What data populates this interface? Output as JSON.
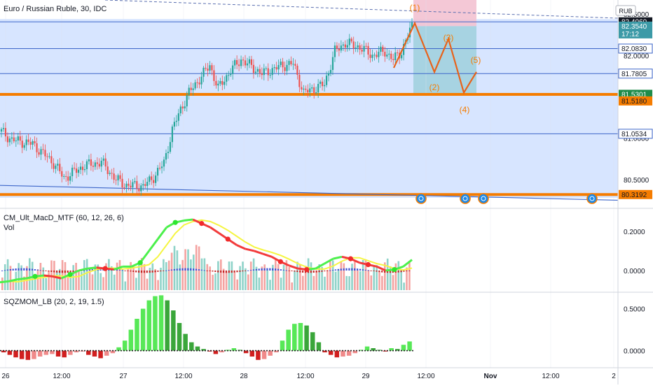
{
  "header": {
    "symbol_title": "Euro / Russian Ruble, 30, IDC",
    "currency_badge": "RUB"
  },
  "colors": {
    "bull": "#26a69a",
    "bear": "#ef5350",
    "orange": "#f57c00",
    "zone": "#c9dcff",
    "blue_line": "#3d66c9",
    "macd_green": "#4cf04c",
    "macd_red": "#f23b3b",
    "signal_yellow": "#f5f542",
    "sqz_lime": "#57e857",
    "sqz_green": "#1f8a1f",
    "sqz_red": "#d11f1f",
    "sqz_maroon": "#f08a8a"
  },
  "chart_data": [
    {
      "type": "candlestick",
      "title": "Euro / Russian Ruble, 30, IDC",
      "y_axis_ticks": [
        "80.5000",
        "81.0000",
        "81.5000",
        "82.0000",
        "82.5000"
      ],
      "ylim": [
        80.22,
        82.67
      ],
      "x_axis_ticks": [
        "26",
        "12:00",
        "27",
        "12:00",
        "28",
        "12:00",
        "29",
        "12:00",
        "Nov",
        "12:00",
        "2"
      ],
      "horizontal_levels": [
        {
          "value": 82.406,
          "label": "82.4060",
          "style": "dark"
        },
        {
          "value": 82.354,
          "label": "82.3540",
          "style": "teal",
          "countdown": "17:12"
        },
        {
          "value": 82.083,
          "label": "82.0830",
          "style": "blue-outline"
        },
        {
          "value": 81.7805,
          "label": "81.7805",
          "style": "blue-outline"
        },
        {
          "value": 81.5301,
          "label": "81.5301",
          "style": "green"
        },
        {
          "value": 81.518,
          "label": "81.5180",
          "style": "orange"
        },
        {
          "value": 81.0534,
          "label": "81.0534",
          "style": "blue-outline"
        },
        {
          "value": 80.3192,
          "label": "80.3192",
          "style": "orange"
        }
      ],
      "wave_labels": [
        "(1)",
        "(2)",
        "(3)",
        "(4)",
        "(5)"
      ],
      "wave_path": [
        82.39,
        81.8,
        82.2,
        81.55,
        81.8
      ],
      "candles_summary": {
        "start": 81.08,
        "low": 80.37,
        "breakout_high": 81.95,
        "last": 82.35
      }
    },
    {
      "type": "line",
      "title": "CM_Ult_MacD_MTF (60, 12, 26, 6)",
      "sub_label": "Vol",
      "y_axis_ticks": [
        "0.0000",
        "0.2000"
      ],
      "ylim": [
        -0.1,
        0.31
      ],
      "series": [
        {
          "values": [
            -0.06,
            -0.055,
            -0.045,
            -0.04,
            -0.03,
            -0.025,
            -0.03,
            -0.04,
            -0.02,
            0,
            0.01,
            0.015,
            0.01,
            0.005,
            0.02,
            0.02,
            0.04,
            0.1,
            0.16,
            0.22,
            0.245,
            0.255,
            0.26,
            0.24,
            0.22,
            0.19,
            0.16,
            0.13,
            0.11,
            0.1,
            0.085,
            0.07,
            0.045,
            0.025,
            0.01,
            0.005,
            0.01,
            0.035,
            0.06,
            0.07,
            0.06,
            0.04,
            0.03,
            0.02,
            0.0,
            0.005,
            0.02,
            0.055
          ]
        }
      ]
    },
    {
      "type": "bar",
      "title": "SQZMOM_LB (20, 2, 19, 1.5)",
      "y_axis_ticks": [
        "0.0000",
        "0.5000"
      ],
      "ylim": [
        -0.17,
        0.68
      ],
      "values": [
        -0.02,
        -0.05,
        -0.08,
        -0.1,
        -0.11,
        -0.1,
        -0.07,
        -0.05,
        -0.04,
        -0.07,
        -0.08,
        -0.05,
        -0.02,
        -0.01,
        -0.05,
        -0.07,
        -0.09,
        -0.06,
        -0.03,
        0.04,
        0.12,
        0.25,
        0.38,
        0.5,
        0.6,
        0.65,
        0.66,
        0.6,
        0.48,
        0.33,
        0.2,
        0.1,
        0.05,
        0.02,
        -0.01,
        -0.04,
        -0.02,
        0.01,
        0.03,
        0.01,
        -0.03,
        -0.07,
        -0.11,
        -0.1,
        -0.06,
        -0.02,
        0.12,
        0.25,
        0.32,
        0.33,
        0.3,
        0.22,
        0.1,
        -0.02,
        -0.05,
        -0.08,
        -0.07,
        -0.06,
        -0.03,
        0.01,
        0.05,
        0.03,
        0.01,
        -0.01,
        0.03,
        0.02,
        0.07,
        0.11
      ]
    }
  ]
}
